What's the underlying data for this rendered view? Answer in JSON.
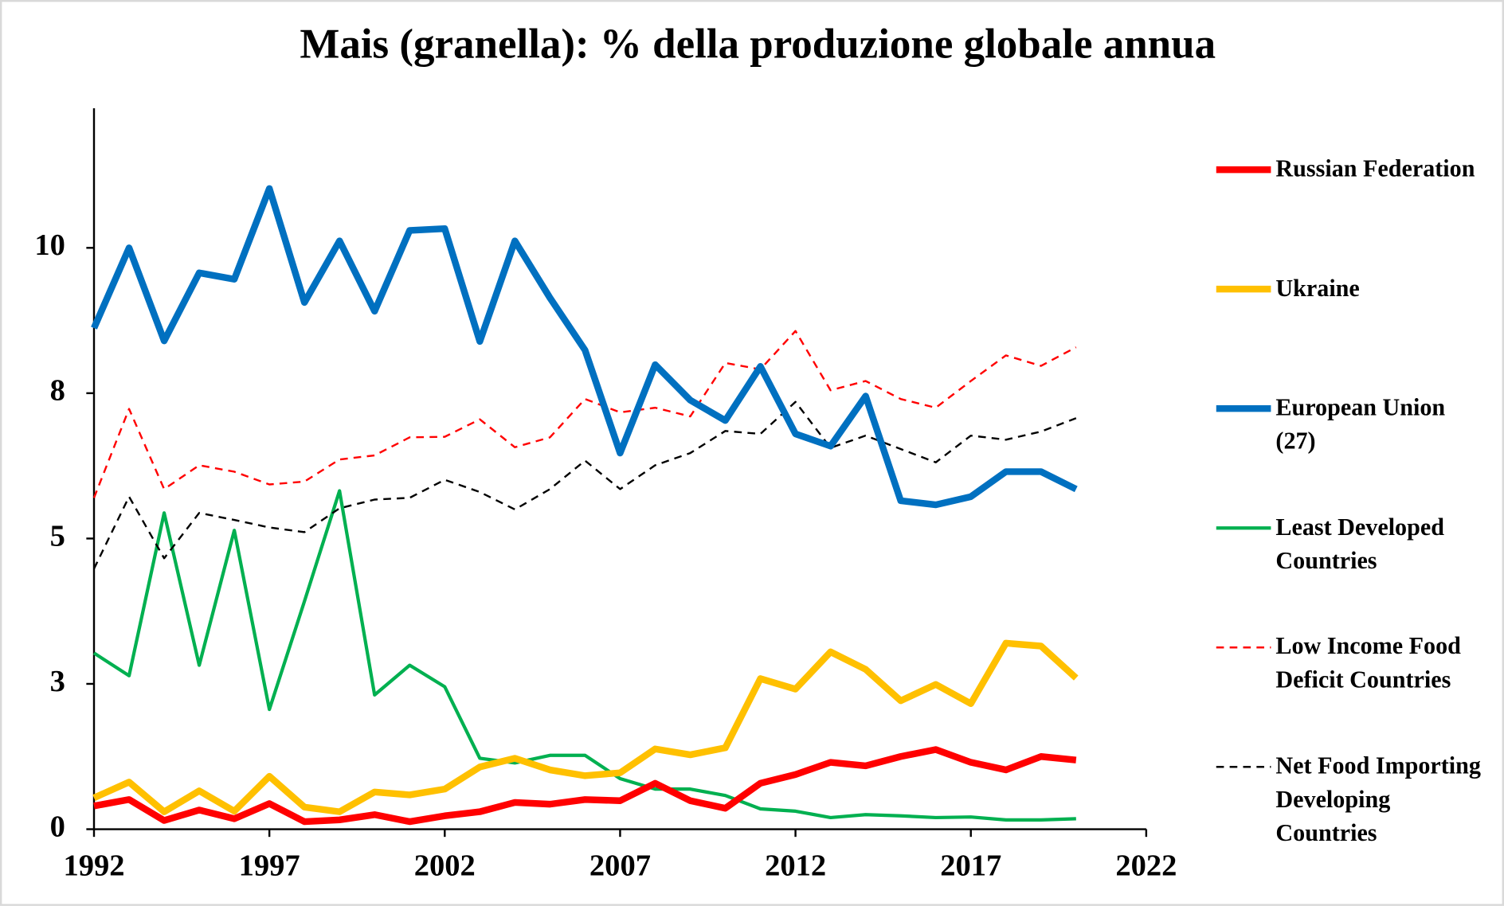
{
  "chart_data": {
    "type": "line",
    "title": "Mais (granella): % della produzione globale annua",
    "x": [
      1992,
      1993,
      1994,
      1995,
      1996,
      1997,
      1998,
      1999,
      2000,
      2001,
      2002,
      2003,
      2004,
      2005,
      2006,
      2007,
      2008,
      2009,
      2010,
      2011,
      2012,
      2013,
      2014,
      2015,
      2016,
      2017,
      2018,
      2019,
      2020
    ],
    "xlim": [
      1992,
      2022
    ],
    "xticks": [
      1992,
      1997,
      2002,
      2007,
      2012,
      2017,
      2022
    ],
    "ylim": [
      0,
      12.4
    ],
    "yticks": [
      0,
      {
        "value": 2.5,
        "label": "3"
      },
      5,
      {
        "value": 7.5,
        "label": "8"
      },
      10
    ],
    "legend": "right",
    "series": [
      {
        "name": "Russian Federation",
        "color": "#ff0000",
        "width": 7,
        "dash": false,
        "values": [
          0.4,
          0.51,
          0.15,
          0.33,
          0.18,
          0.44,
          0.13,
          0.16,
          0.25,
          0.13,
          0.23,
          0.3,
          0.46,
          0.43,
          0.51,
          0.49,
          0.79,
          0.49,
          0.36,
          0.79,
          0.94,
          1.15,
          1.09,
          1.25,
          1.37,
          1.15,
          1.02,
          1.25,
          1.19
        ]
      },
      {
        "name": "Ukraine",
        "color": "#ffc000",
        "width": 7,
        "dash": false,
        "values": [
          0.54,
          0.81,
          0.3,
          0.66,
          0.31,
          0.91,
          0.38,
          0.3,
          0.64,
          0.59,
          0.69,
          1.07,
          1.22,
          1.02,
          0.92,
          0.97,
          1.38,
          1.28,
          1.4,
          2.59,
          2.41,
          3.05,
          2.75,
          2.21,
          2.49,
          2.16,
          3.2,
          3.15,
          2.6
        ]
      },
      {
        "name": "European Union (27)",
        "color": "#0070c0",
        "width": 7,
        "dash": false,
        "values": [
          8.62,
          10,
          8.4,
          9.57,
          9.46,
          11.02,
          9.06,
          10.12,
          8.91,
          10.3,
          10.33,
          8.39,
          10.12,
          9.14,
          8.24,
          6.47,
          7.99,
          7.38,
          7.03,
          7.96,
          6.8,
          6.59,
          7.45,
          5.65,
          5.58,
          5.72,
          6.15,
          6.15,
          5.85
        ]
      },
      {
        "name": "Least Developed Countries",
        "color": "#00b050",
        "width": 3.5,
        "dash": false,
        "values": [
          3.03,
          2.64,
          5.44,
          2.82,
          5.14,
          2.06,
          3.92,
          5.82,
          2.31,
          2.82,
          2.45,
          1.22,
          1.14,
          1.27,
          1.27,
          0.87,
          0.69,
          0.69,
          0.58,
          0.35,
          0.31,
          0.2,
          0.25,
          0.23,
          0.2,
          0.21,
          0.16,
          0.16,
          0.18
        ]
      },
      {
        "name": "Low Income Food Deficit Countries",
        "color": "#ff0000",
        "width": 2,
        "dash": true,
        "values": [
          5.7,
          7.23,
          5.85,
          6.26,
          6.15,
          5.93,
          5.98,
          6.36,
          6.43,
          6.74,
          6.75,
          7.05,
          6.57,
          6.74,
          7.4,
          7.17,
          7.25,
          7.1,
          8.02,
          7.91,
          8.57,
          7.55,
          7.71,
          7.4,
          7.25,
          7.71,
          8.15,
          7.97,
          8.29
        ]
      },
      {
        "name": "Net Food Importing Developing Countries",
        "color": "#000000",
        "width": 2,
        "dash": true,
        "values": [
          4.48,
          5.72,
          4.66,
          5.44,
          5.32,
          5.19,
          5.11,
          5.52,
          5.67,
          5.7,
          6.01,
          5.8,
          5.5,
          5.85,
          6.34,
          5.85,
          6.26,
          6.47,
          6.85,
          6.8,
          7.35,
          6.56,
          6.77,
          6.54,
          6.31,
          6.77,
          6.7,
          6.84,
          7.07
        ]
      }
    ]
  }
}
